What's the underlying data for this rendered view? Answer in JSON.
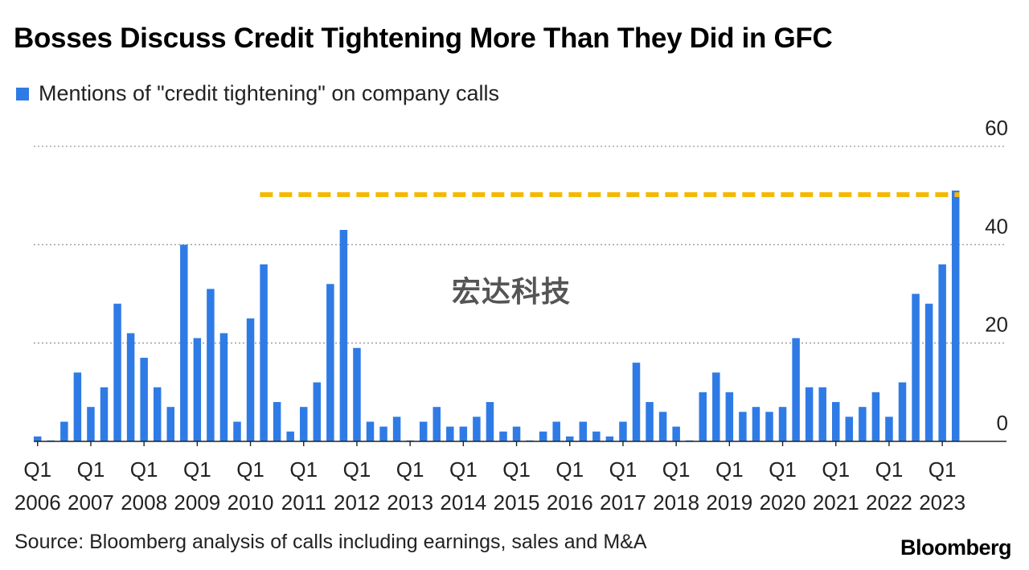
{
  "title": "Bosses Discuss Credit Tightening More Than They Did in GFC",
  "source": "Source: Bloomberg analysis of calls including earnings, sales and M&A",
  "brand": "Bloomberg",
  "watermark": "宏达科技",
  "colors": {
    "bar": "#2f7be6",
    "reference_line": "#f5b800",
    "grid": "#9a9a9a"
  },
  "chart_data": {
    "type": "bar",
    "legend": "Mentions of \"credit tightening\" on company calls",
    "legend_position": "top-left",
    "ylim": [
      0,
      60
    ],
    "y_ticks": [
      0,
      20,
      40,
      60
    ],
    "y_axis_side": "right",
    "grid": "horizontal dotted",
    "start": {
      "year": 2006,
      "quarter": 1
    },
    "x_ticks": [
      {
        "q": "Q1",
        "year": "2006"
      },
      {
        "q": "Q1",
        "year": "2007"
      },
      {
        "q": "Q1",
        "year": "2008"
      },
      {
        "q": "Q1",
        "year": "2009"
      },
      {
        "q": "Q1",
        "year": "2010"
      },
      {
        "q": "Q1",
        "year": "2011"
      },
      {
        "q": "Q1",
        "year": "2012"
      },
      {
        "q": "Q1",
        "year": "2013"
      },
      {
        "q": "Q1",
        "year": "2014"
      },
      {
        "q": "Q1",
        "year": "2015"
      },
      {
        "q": "Q1",
        "year": "2016"
      },
      {
        "q": "Q1",
        "year": "2017"
      },
      {
        "q": "Q1",
        "year": "2018"
      },
      {
        "q": "Q1",
        "year": "2019"
      },
      {
        "q": "Q1",
        "year": "2020"
      },
      {
        "q": "Q1",
        "year": "2021"
      },
      {
        "q": "Q1",
        "year": "2022"
      },
      {
        "q": "Q1",
        "year": "2023"
      }
    ],
    "values": [
      1,
      0,
      4,
      14,
      7,
      11,
      28,
      22,
      17,
      11,
      7,
      40,
      21,
      31,
      22,
      4,
      25,
      36,
      8,
      2,
      7,
      12,
      32,
      43,
      19,
      4,
      3,
      5,
      0,
      4,
      7,
      3,
      3,
      5,
      8,
      2,
      3,
      0,
      2,
      4,
      1,
      4,
      2,
      1,
      4,
      16,
      8,
      6,
      3,
      0,
      10,
      14,
      10,
      6,
      7,
      6,
      7,
      21,
      11,
      11,
      8,
      5,
      7,
      10,
      5,
      12,
      30,
      28,
      36,
      51
    ],
    "reference_line": {
      "value": 50,
      "style": "dashed",
      "from_index": 17,
      "to_index": 69
    }
  }
}
